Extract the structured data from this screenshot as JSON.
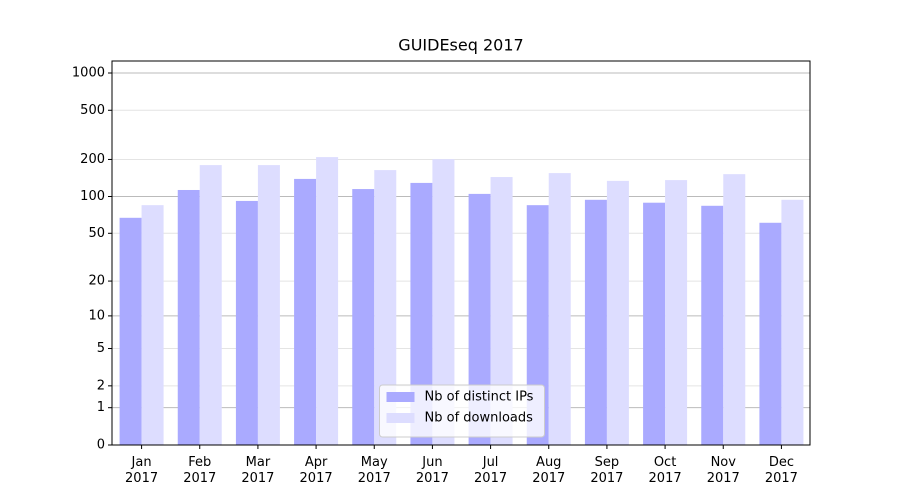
{
  "chart_data": {
    "type": "bar",
    "title": "GUIDEseq 2017",
    "categories": [
      "Jan 2017",
      "Feb 2017",
      "Mar 2017",
      "Apr 2017",
      "May 2017",
      "Jun 2017",
      "Jul 2017",
      "Aug 2017",
      "Sep 2017",
      "Oct 2017",
      "Nov 2017",
      "Dec 2017"
    ],
    "series": [
      {
        "name": "Nb of distinct IPs",
        "color": "#aaaaff",
        "values": [
          67,
          113,
          92,
          139,
          115,
          129,
          105,
          85,
          94,
          89,
          84,
          61
        ]
      },
      {
        "name": "Nb of downloads",
        "color": "#ddddff",
        "values": [
          85,
          180,
          180,
          209,
          164,
          201,
          144,
          155,
          134,
          136,
          152,
          94
        ]
      }
    ],
    "y_scale": "log1p",
    "ylim": [
      0,
      1250
    ],
    "yticks": [
      0,
      1,
      2,
      5,
      10,
      20,
      50,
      100,
      200,
      500,
      1000
    ],
    "grid": true,
    "legend_position": "lower center"
  }
}
